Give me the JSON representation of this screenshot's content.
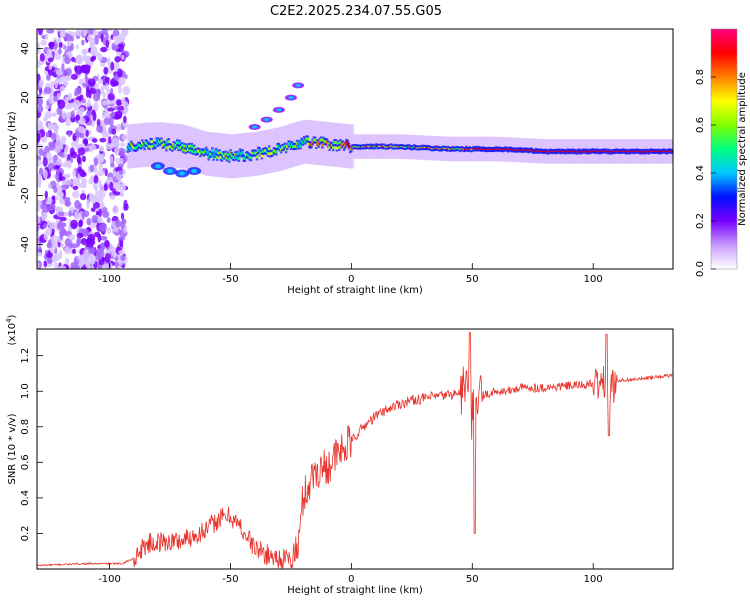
{
  "page_title": "C2E2.2025.234.07.55.G05",
  "chart_data": [
    {
      "type": "heatmap",
      "title": "C2E2.2025.234.07.55.G05",
      "xlabel": "Height of straight line (km)",
      "ylabel": "Frequency (Hz)",
      "xlim": [
        -130,
        133
      ],
      "ylim": [
        -50,
        48
      ],
      "x_ticks": [
        -100,
        -50,
        0,
        50,
        100
      ],
      "y_ticks": [
        -40,
        -20,
        0,
        20,
        40
      ],
      "colorbar": {
        "label": "Normalized spectral amplitude",
        "range": [
          0,
          1
        ],
        "ticks": [
          "0.0",
          "0.2",
          "0.4",
          "0.6",
          "0.8"
        ],
        "tick_values": [
          0.0,
          0.2,
          0.4,
          0.6,
          0.8
        ],
        "colors": [
          "#ffffff",
          "#c79bff",
          "#7a00ff",
          "#0010ff",
          "#00c8ff",
          "#00ff80",
          "#80ff00",
          "#ffff00",
          "#ff8000",
          "#ff0000",
          "#ff0080"
        ]
      },
      "ridge": {
        "x": [
          -93,
          -88,
          -80,
          -70,
          -60,
          -50,
          -40,
          -30,
          -20,
          -10,
          0,
          20,
          40,
          60,
          80,
          100,
          133
        ],
        "y": [
          0,
          0.5,
          1,
          0,
          -3,
          -4,
          -3,
          -1,
          2,
          1,
          0,
          0,
          -1,
          -1,
          -2,
          -2,
          -2
        ]
      },
      "noise_region": [
        -130,
        -93
      ],
      "upper_branch": {
        "x": [
          -40,
          -35,
          -30,
          -25,
          -22
        ],
        "y": [
          8,
          11,
          15,
          20,
          25
        ]
      },
      "lower_blob": {
        "x": [
          -80,
          -75,
          -70,
          -65
        ],
        "y": [
          -8,
          -10,
          -11,
          -10
        ]
      }
    },
    {
      "type": "line",
      "title": "",
      "xlabel": "Height of straight line (km)",
      "ylabel": "SNR (10 * v/v)",
      "scale_note_base": "(x10",
      "scale_note_exp": "4",
      "scale_note_close": ")",
      "xlim": [
        -130,
        133
      ],
      "ylim": [
        0,
        1.35
      ],
      "x_ticks": [
        -100,
        -50,
        0,
        50,
        100
      ],
      "y_ticks": [
        0.2,
        0.4,
        0.6,
        0.8,
        1.0,
        1.2
      ],
      "series": [
        {
          "name": "SNR",
          "color": "#e8322a",
          "x": [
            -130,
            -110,
            -95,
            -90,
            -85,
            -80,
            -70,
            -60,
            -55,
            -50,
            -45,
            -40,
            -35,
            -30,
            -25,
            -22,
            -20,
            -15,
            -10,
            -5,
            0,
            5,
            10,
            15,
            20,
            25,
            30,
            35,
            40,
            45,
            48,
            50,
            52,
            55,
            60,
            65,
            70,
            80,
            90,
            100,
            105,
            108,
            110,
            120,
            133
          ],
          "y": [
            0.02,
            0.03,
            0.03,
            0.06,
            0.14,
            0.15,
            0.16,
            0.22,
            0.28,
            0.3,
            0.22,
            0.12,
            0.08,
            0.06,
            0.05,
            0.12,
            0.4,
            0.55,
            0.58,
            0.65,
            0.72,
            0.8,
            0.86,
            0.9,
            0.93,
            0.95,
            0.96,
            0.97,
            0.98,
            0.99,
            1.05,
            0.85,
            0.95,
            0.98,
            1.0,
            1.0,
            1.02,
            1.02,
            1.03,
            1.04,
            1.05,
            1.02,
            1.06,
            1.07,
            1.09
          ]
        }
      ]
    }
  ]
}
